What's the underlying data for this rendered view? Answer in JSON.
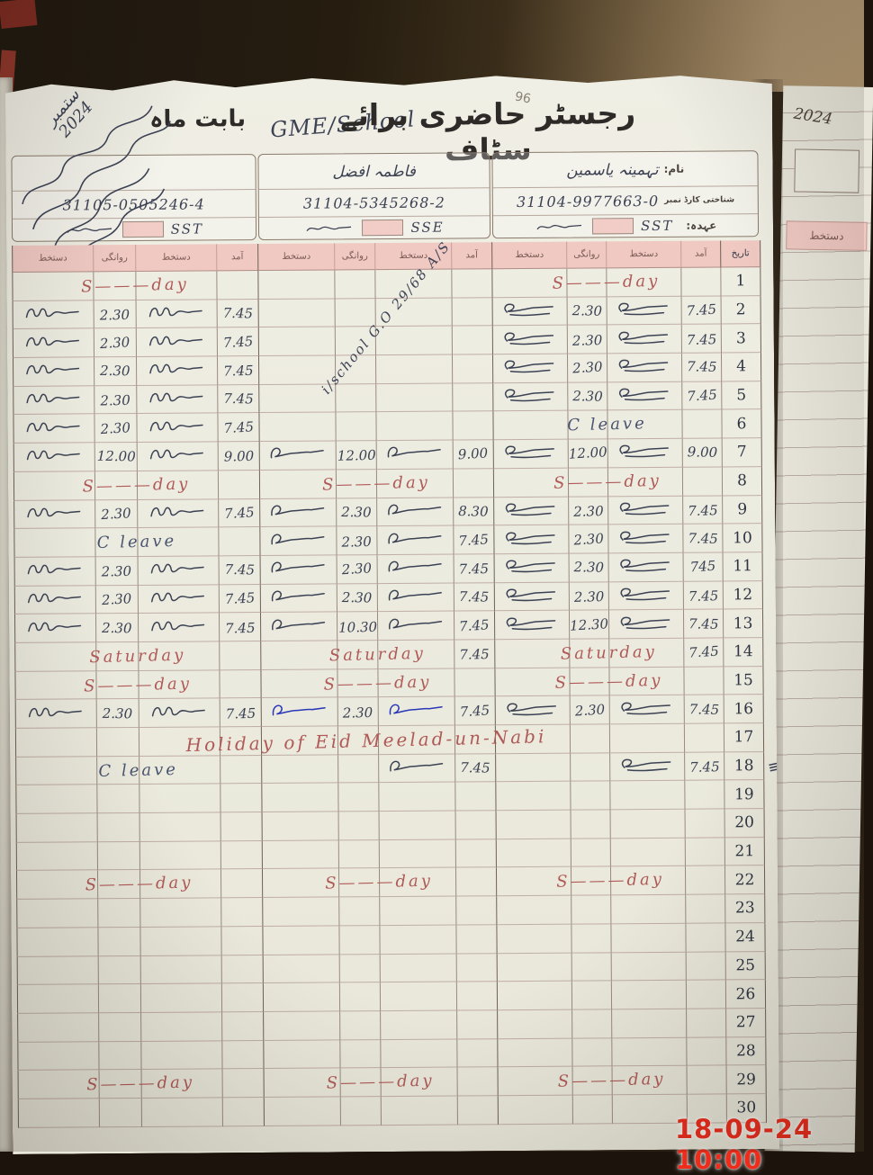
{
  "page": {
    "title": "رجسٹر حاضری برائے سٹاف",
    "school": "GME/School",
    "for_month_label": "بابت ماہ",
    "month_written": "ستمبر",
    "year_written": "2024",
    "page_number": "96"
  },
  "labels": {
    "name": "نام:",
    "cnic": "شناختی کارڈ نمبر",
    "designation": "عہدہ:"
  },
  "teachers": [
    {
      "name": "",
      "cnic": "31105-0505246-4",
      "designation": "SST"
    },
    {
      "name": "فاطمہ افضل",
      "cnic": "31104-5345268-2",
      "designation": "SSE"
    },
    {
      "name": "تہمینہ یاسمین",
      "cnic": "31104-9977663-0",
      "designation": "SST"
    }
  ],
  "diagonal_note": "i/school G.O 29/68 A/S",
  "grid": {
    "headers": {
      "sig": "دستخط",
      "out": "روانگی",
      "in": "آمد",
      "date": "تاریخ"
    },
    "margin_mark_row18": "≡"
  },
  "rows": [
    {
      "day": 1,
      "t1": {
        "note": "S———day",
        "ink": "r"
      },
      "t3": {
        "note": "S———day",
        "ink": "r"
      }
    },
    {
      "day": 2,
      "t1": {
        "out": "2.30",
        "in": "7.45"
      },
      "t3": {
        "out": "2.30",
        "in": "7.45"
      }
    },
    {
      "day": 3,
      "t1": {
        "out": "2.30",
        "in": "7.45"
      },
      "t3": {
        "out": "2.30",
        "in": "7.45"
      }
    },
    {
      "day": 4,
      "t1": {
        "out": "2.30",
        "in": "7.45"
      },
      "t3": {
        "out": "2.30",
        "in": "7.45"
      }
    },
    {
      "day": 5,
      "t1": {
        "out": "2.30",
        "in": "7.45"
      },
      "t3": {
        "out": "2.30",
        "in": "7.45"
      }
    },
    {
      "day": 6,
      "t1": {
        "out": "2.30",
        "in": "7.45"
      },
      "t3": {
        "note": "C leave",
        "ink": "b"
      }
    },
    {
      "day": 7,
      "t1": {
        "out": "12.00",
        "in": "9.00"
      },
      "t2": {
        "out": "12.00",
        "in": "9.00"
      },
      "t3": {
        "out": "12.00",
        "in": "9.00"
      }
    },
    {
      "day": 8,
      "t1": {
        "note": "S———day",
        "ink": "r"
      },
      "t2": {
        "note": "S———day",
        "ink": "r"
      },
      "t3": {
        "note": "S———day",
        "ink": "r"
      }
    },
    {
      "day": 9,
      "t1": {
        "out": "2.30",
        "in": "7.45"
      },
      "t2": {
        "out": "2.30",
        "in": "8.30"
      },
      "t3": {
        "out": "2.30",
        "in": "7.45"
      }
    },
    {
      "day": 10,
      "t1": {
        "note": "C leave",
        "ink": "b"
      },
      "t2": {
        "out": "2.30",
        "in": "7.45"
      },
      "t3": {
        "out": "2.30",
        "in": "7.45"
      }
    },
    {
      "day": 11,
      "t1": {
        "out": "2.30",
        "in": "7.45"
      },
      "t2": {
        "out": "2.30",
        "in": "7.45"
      },
      "t3": {
        "out": "2.30",
        "in": "745"
      }
    },
    {
      "day": 12,
      "t1": {
        "out": "2.30",
        "in": "7.45"
      },
      "t2": {
        "out": "2.30",
        "in": "7.45"
      },
      "t3": {
        "out": "2.30",
        "in": "7.45"
      }
    },
    {
      "day": 13,
      "t1": {
        "out": "2.30",
        "in": "7.45"
      },
      "t2": {
        "out": "10.30",
        "in": "7.45"
      },
      "t3": {
        "out": "12.30",
        "in": "7.45"
      }
    },
    {
      "day": 14,
      "t1": {
        "note": "Saturday",
        "ink": "r"
      },
      "t2": {
        "note": "Saturday",
        "ink": "r",
        "in": "7.45"
      },
      "t3": {
        "note": "Saturday",
        "ink": "r",
        "in": "7.45"
      }
    },
    {
      "day": 15,
      "t1": {
        "note": "S———day",
        "ink": "r"
      },
      "t2": {
        "note": "S———day",
        "ink": "r"
      },
      "t3": {
        "note": "S———day",
        "ink": "r"
      }
    },
    {
      "day": 16,
      "t1": {
        "out": "2.30",
        "in": "7.45"
      },
      "t2": {
        "out": "2.30",
        "in": "7.45",
        "blue": true
      },
      "t3": {
        "out": "2.30",
        "in": "7.45"
      }
    },
    {
      "day": 17,
      "full": {
        "note": "Holiday of Eid Meelad-un-Nabi",
        "ink": "r"
      }
    },
    {
      "day": 18,
      "t1": {
        "note": "C leave",
        "ink": "b"
      },
      "t2": {
        "in": "7.45"
      },
      "t3": {
        "in": "7.45"
      }
    },
    {
      "day": 19
    },
    {
      "day": 20
    },
    {
      "day": 21
    },
    {
      "day": 22,
      "t1": {
        "note": "S———day",
        "ink": "r"
      },
      "t2": {
        "note": "S———day",
        "ink": "r"
      },
      "t3": {
        "note": "S———day",
        "ink": "r"
      }
    },
    {
      "day": 23
    },
    {
      "day": 24
    },
    {
      "day": 25
    },
    {
      "day": 26
    },
    {
      "day": 27
    },
    {
      "day": 28
    },
    {
      "day": 29,
      "t1": {
        "note": "S———day",
        "ink": "r"
      },
      "t2": {
        "note": "S———day",
        "ink": "r"
      },
      "t3": {
        "note": "S———day",
        "ink": "r"
      }
    },
    {
      "day": 30
    }
  ],
  "next_page": {
    "year": "2024",
    "sig_header": "دستخط"
  },
  "camera": {
    "timestamp": "18-09-24 10:00"
  }
}
